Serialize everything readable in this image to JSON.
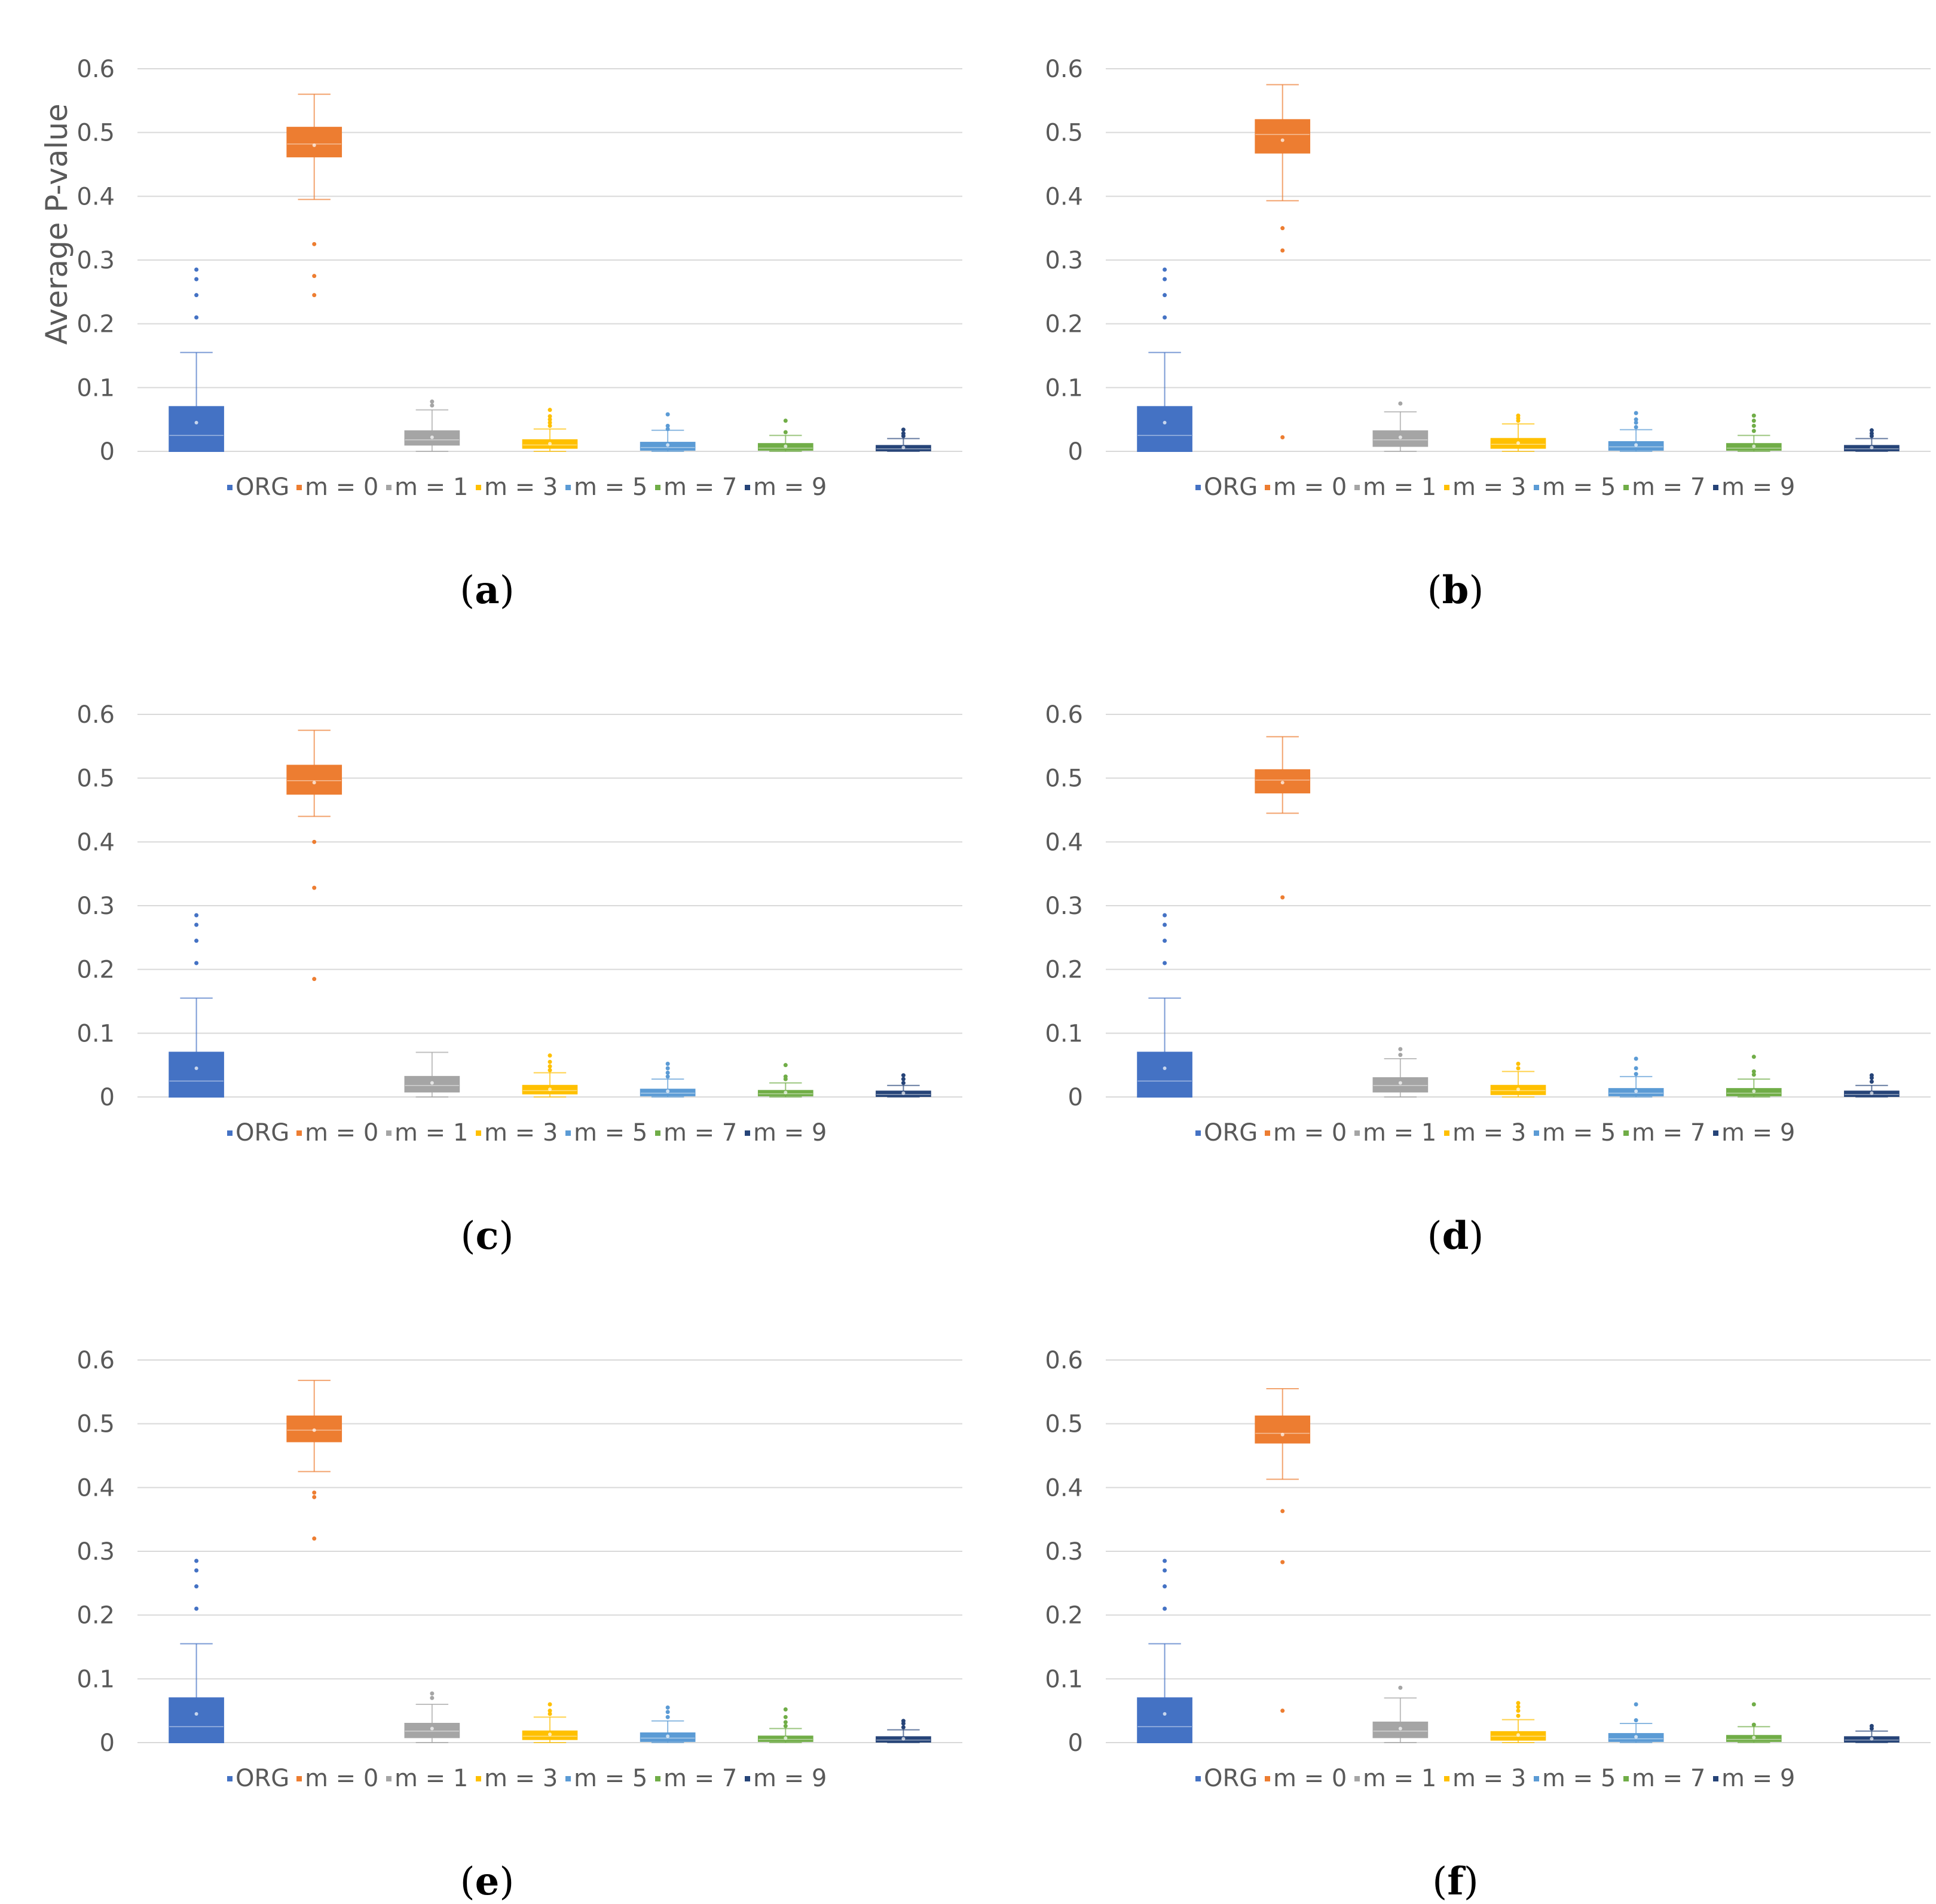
{
  "series_names": [
    "ORG",
    "m = 0",
    "m = 1",
    "m = 3",
    "m = 5",
    "m = 7",
    "m = 9"
  ],
  "series_colors": [
    "#4472C4",
    "#ED7D31",
    "#A5A5A5",
    "#FFC000",
    "#5B9BD5",
    "#70AD47",
    "#264478"
  ],
  "y_ticks": [
    "0",
    "0.1",
    "0.2",
    "0.3",
    "0.4",
    "0.5",
    "0.6"
  ],
  "y_axis_label": "Average P-value",
  "panels": [
    {
      "label": "a"
    },
    {
      "label": "b"
    },
    {
      "label": "c"
    },
    {
      "label": "d"
    },
    {
      "label": "e"
    },
    {
      "label": "f"
    }
  ],
  "chart_data": [
    {
      "type": "box",
      "title": "",
      "caption": "(a)",
      "ylabel": "Average P-value",
      "ylim": [
        0,
        0.6
      ],
      "series": [
        {
          "name": "ORG",
          "min": 0,
          "q1": 0.0,
          "median": 0.025,
          "q3": 0.07,
          "max": 0.155,
          "mean": 0.045,
          "outliers": [
            0.21,
            0.245,
            0.27,
            0.285
          ]
        },
        {
          "name": "m = 0",
          "min": 0.395,
          "q1": 0.462,
          "median": 0.482,
          "q3": 0.508,
          "max": 0.56,
          "mean": 0.48,
          "outliers": [
            0.245,
            0.275,
            0.325
          ]
        },
        {
          "name": "m = 1",
          "min": 0,
          "q1": 0.01,
          "median": 0.018,
          "q3": 0.032,
          "max": 0.065,
          "mean": 0.022,
          "outliers": [
            0.072,
            0.078
          ]
        },
        {
          "name": "m = 3",
          "min": 0,
          "q1": 0.005,
          "median": 0.01,
          "q3": 0.018,
          "max": 0.035,
          "mean": 0.012,
          "outliers": [
            0.04,
            0.045,
            0.05,
            0.055,
            0.065
          ]
        },
        {
          "name": "m = 5",
          "min": 0,
          "q1": 0.002,
          "median": 0.006,
          "q3": 0.014,
          "max": 0.033,
          "mean": 0.01,
          "outliers": [
            0.035,
            0.04,
            0.058
          ]
        },
        {
          "name": "m = 7",
          "min": 0,
          "q1": 0.002,
          "median": 0.005,
          "q3": 0.012,
          "max": 0.025,
          "mean": 0.008,
          "outliers": [
            0.03,
            0.048
          ]
        },
        {
          "name": "m = 9",
          "min": 0,
          "q1": 0.001,
          "median": 0.004,
          "q3": 0.009,
          "max": 0.02,
          "mean": 0.006,
          "outliers": [
            0.024,
            0.028,
            0.034
          ]
        }
      ]
    },
    {
      "type": "box",
      "title": "",
      "caption": "(b)",
      "ylabel": "",
      "ylim": [
        0,
        0.6
      ],
      "series": [
        {
          "name": "ORG",
          "min": 0,
          "q1": 0.0,
          "median": 0.025,
          "q3": 0.07,
          "max": 0.155,
          "mean": 0.045,
          "outliers": [
            0.21,
            0.245,
            0.27,
            0.285
          ]
        },
        {
          "name": "m = 0",
          "min": 0.393,
          "q1": 0.468,
          "median": 0.497,
          "q3": 0.52,
          "max": 0.575,
          "mean": 0.488,
          "outliers": [
            0.022,
            0.315,
            0.35
          ]
        },
        {
          "name": "m = 1",
          "min": 0,
          "q1": 0.008,
          "median": 0.018,
          "q3": 0.032,
          "max": 0.062,
          "mean": 0.022,
          "outliers": [
            0.075
          ]
        },
        {
          "name": "m = 3",
          "min": 0,
          "q1": 0.005,
          "median": 0.011,
          "q3": 0.02,
          "max": 0.043,
          "mean": 0.013,
          "outliers": [
            0.048,
            0.052,
            0.056
          ]
        },
        {
          "name": "m = 5",
          "min": 0,
          "q1": 0.002,
          "median": 0.007,
          "q3": 0.015,
          "max": 0.034,
          "mean": 0.01,
          "outliers": [
            0.038,
            0.045,
            0.05,
            0.06
          ]
        },
        {
          "name": "m = 7",
          "min": 0,
          "q1": 0.002,
          "median": 0.005,
          "q3": 0.012,
          "max": 0.025,
          "mean": 0.008,
          "outliers": [
            0.032,
            0.04,
            0.048,
            0.056
          ]
        },
        {
          "name": "m = 9",
          "min": 0,
          "q1": 0.001,
          "median": 0.004,
          "q3": 0.009,
          "max": 0.02,
          "mean": 0.006,
          "outliers": [
            0.024,
            0.028,
            0.033
          ]
        }
      ]
    },
    {
      "type": "box",
      "title": "",
      "caption": "(c)",
      "ylabel": "",
      "ylim": [
        0,
        0.6
      ],
      "series": [
        {
          "name": "ORG",
          "min": 0,
          "q1": 0.0,
          "median": 0.025,
          "q3": 0.07,
          "max": 0.155,
          "mean": 0.045,
          "outliers": [
            0.21,
            0.245,
            0.27,
            0.285
          ]
        },
        {
          "name": "m = 0",
          "min": 0.44,
          "q1": 0.475,
          "median": 0.496,
          "q3": 0.52,
          "max": 0.575,
          "mean": 0.493,
          "outliers": [
            0.185,
            0.328,
            0.4
          ]
        },
        {
          "name": "m = 1",
          "min": 0,
          "q1": 0.008,
          "median": 0.018,
          "q3": 0.032,
          "max": 0.07,
          "mean": 0.022,
          "outliers": []
        },
        {
          "name": "m = 3",
          "min": 0,
          "q1": 0.005,
          "median": 0.01,
          "q3": 0.018,
          "max": 0.038,
          "mean": 0.012,
          "outliers": [
            0.042,
            0.048,
            0.055,
            0.065
          ]
        },
        {
          "name": "m = 5",
          "min": 0,
          "q1": 0.002,
          "median": 0.006,
          "q3": 0.012,
          "max": 0.028,
          "mean": 0.009,
          "outliers": [
            0.032,
            0.038,
            0.045,
            0.052
          ]
        },
        {
          "name": "m = 7",
          "min": 0,
          "q1": 0.002,
          "median": 0.005,
          "q3": 0.01,
          "max": 0.022,
          "mean": 0.007,
          "outliers": [
            0.028,
            0.032,
            0.05
          ]
        },
        {
          "name": "m = 9",
          "min": 0,
          "q1": 0.001,
          "median": 0.004,
          "q3": 0.009,
          "max": 0.018,
          "mean": 0.006,
          "outliers": [
            0.022,
            0.028,
            0.034
          ]
        }
      ]
    },
    {
      "type": "box",
      "title": "",
      "caption": "(d)",
      "ylabel": "",
      "ylim": [
        0,
        0.6
      ],
      "series": [
        {
          "name": "ORG",
          "min": 0,
          "q1": 0.0,
          "median": 0.025,
          "q3": 0.07,
          "max": 0.155,
          "mean": 0.045,
          "outliers": [
            0.21,
            0.245,
            0.27,
            0.285
          ]
        },
        {
          "name": "m = 0",
          "min": 0.445,
          "q1": 0.477,
          "median": 0.497,
          "q3": 0.513,
          "max": 0.565,
          "mean": 0.493,
          "outliers": [
            0.313
          ]
        },
        {
          "name": "m = 1",
          "min": 0,
          "q1": 0.008,
          "median": 0.018,
          "q3": 0.03,
          "max": 0.06,
          "mean": 0.022,
          "outliers": [
            0.066,
            0.075
          ]
        },
        {
          "name": "m = 3",
          "min": 0,
          "q1": 0.004,
          "median": 0.01,
          "q3": 0.018,
          "max": 0.04,
          "mean": 0.012,
          "outliers": [
            0.045,
            0.052
          ]
        },
        {
          "name": "m = 5",
          "min": 0,
          "q1": 0.002,
          "median": 0.006,
          "q3": 0.013,
          "max": 0.032,
          "mean": 0.009,
          "outliers": [
            0.036,
            0.045,
            0.06
          ]
        },
        {
          "name": "m = 7",
          "min": 0,
          "q1": 0.002,
          "median": 0.006,
          "q3": 0.013,
          "max": 0.028,
          "mean": 0.009,
          "outliers": [
            0.035,
            0.04,
            0.063
          ]
        },
        {
          "name": "m = 9",
          "min": 0,
          "q1": 0.001,
          "median": 0.004,
          "q3": 0.009,
          "max": 0.018,
          "mean": 0.006,
          "outliers": [
            0.024,
            0.03,
            0.034
          ]
        }
      ]
    },
    {
      "type": "box",
      "title": "",
      "caption": "(e)",
      "ylabel": "",
      "ylim": [
        0,
        0.6
      ],
      "series": [
        {
          "name": "ORG",
          "min": 0,
          "q1": 0.0,
          "median": 0.025,
          "q3": 0.07,
          "max": 0.155,
          "mean": 0.045,
          "outliers": [
            0.21,
            0.245,
            0.27,
            0.285
          ]
        },
        {
          "name": "m = 0",
          "min": 0.425,
          "q1": 0.472,
          "median": 0.49,
          "q3": 0.512,
          "max": 0.568,
          "mean": 0.49,
          "outliers": [
            0.32,
            0.385,
            0.392
          ]
        },
        {
          "name": "m = 1",
          "min": 0,
          "q1": 0.008,
          "median": 0.018,
          "q3": 0.03,
          "max": 0.06,
          "mean": 0.022,
          "outliers": [
            0.07,
            0.077
          ]
        },
        {
          "name": "m = 3",
          "min": 0,
          "q1": 0.005,
          "median": 0.01,
          "q3": 0.018,
          "max": 0.04,
          "mean": 0.013,
          "outliers": [
            0.045,
            0.05,
            0.06
          ]
        },
        {
          "name": "m = 5",
          "min": 0,
          "q1": 0.002,
          "median": 0.007,
          "q3": 0.015,
          "max": 0.034,
          "mean": 0.01,
          "outliers": [
            0.04,
            0.048,
            0.055
          ]
        },
        {
          "name": "m = 7",
          "min": 0,
          "q1": 0.002,
          "median": 0.005,
          "q3": 0.01,
          "max": 0.022,
          "mean": 0.007,
          "outliers": [
            0.026,
            0.032,
            0.04,
            0.052
          ]
        },
        {
          "name": "m = 9",
          "min": 0,
          "q1": 0.001,
          "median": 0.004,
          "q3": 0.009,
          "max": 0.02,
          "mean": 0.006,
          "outliers": [
            0.024,
            0.03,
            0.034
          ]
        }
      ]
    },
    {
      "type": "box",
      "title": "",
      "caption": "(f)",
      "ylabel": "",
      "ylim": [
        0,
        0.6
      ],
      "series": [
        {
          "name": "ORG",
          "min": 0,
          "q1": 0.0,
          "median": 0.025,
          "q3": 0.07,
          "max": 0.155,
          "mean": 0.045,
          "outliers": [
            0.21,
            0.245,
            0.27,
            0.285
          ]
        },
        {
          "name": "m = 0",
          "min": 0.413,
          "q1": 0.47,
          "median": 0.485,
          "q3": 0.512,
          "max": 0.555,
          "mean": 0.483,
          "outliers": [
            0.05,
            0.283,
            0.363
          ]
        },
        {
          "name": "m = 1",
          "min": 0,
          "q1": 0.008,
          "median": 0.018,
          "q3": 0.032,
          "max": 0.07,
          "mean": 0.022,
          "outliers": [
            0.086
          ]
        },
        {
          "name": "m = 3",
          "min": 0,
          "q1": 0.004,
          "median": 0.01,
          "q3": 0.017,
          "max": 0.036,
          "mean": 0.012,
          "outliers": [
            0.042,
            0.05,
            0.056,
            0.062
          ]
        },
        {
          "name": "m = 5",
          "min": 0,
          "q1": 0.002,
          "median": 0.006,
          "q3": 0.014,
          "max": 0.03,
          "mean": 0.009,
          "outliers": [
            0.035,
            0.06
          ]
        },
        {
          "name": "m = 7",
          "min": 0,
          "q1": 0.002,
          "median": 0.005,
          "q3": 0.011,
          "max": 0.025,
          "mean": 0.008,
          "outliers": [
            0.028,
            0.06
          ]
        },
        {
          "name": "m = 9",
          "min": 0,
          "q1": 0.001,
          "median": 0.004,
          "q3": 0.009,
          "max": 0.018,
          "mean": 0.006,
          "outliers": [
            0.022,
            0.026
          ]
        }
      ]
    }
  ]
}
